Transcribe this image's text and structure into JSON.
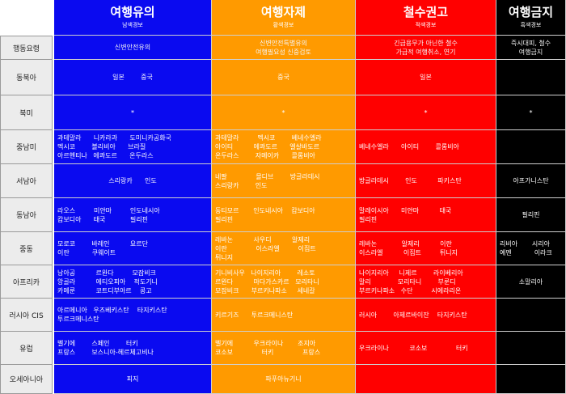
{
  "columns": [
    {
      "title": "여행유의",
      "subtitle": "남색경보",
      "color": "#0a0af0"
    },
    {
      "title": "여행자제",
      "subtitle": "황색경보",
      "color": "#ff9a00"
    },
    {
      "title": "철수권고",
      "subtitle": "적색경보",
      "color": "#ff0000"
    },
    {
      "title": "여행금지",
      "subtitle": "흑색경보",
      "color": "#000000"
    }
  ],
  "rows": [
    {
      "label": "행동요령",
      "cells": [
        [
          "신변안전유의"
        ],
        [
          "신변안전특별유의",
          "여행필요성 신중검토"
        ],
        [
          "긴급용무가 아닌한 철수",
          "가급적 여행취소, 연기"
        ],
        [
          "즉시대피, 철수",
          "여행금지"
        ]
      ]
    },
    {
      "label": "동북아",
      "cells": [
        [
          "일본        중국"
        ],
        [
          "중국"
        ],
        [
          "일본"
        ],
        [
          ""
        ]
      ]
    },
    {
      "label": "북미",
      "cells": [
        [
          "*"
        ],
        [
          "*"
        ],
        [
          "*"
        ],
        [
          "*"
        ]
      ]
    },
    {
      "label": "중남미",
      "cells": [
        [
          "과테말라      니카라과      도미니카공화국",
          "멕시코        볼리비아      브라질",
          "아르헨티나   에콰도르      온두라스"
        ],
        [
          "과테말라         멕시코        베네수엘라",
          "아이티          에콰도르      엘살바도르",
          "온두라스        자메이카      콜롬비아"
        ],
        [
          "베네수엘라      아이티        콜롬비아"
        ],
        [
          ""
        ]
      ]
    },
    {
      "label": "서남아",
      "cells": [
        [
          "스리랑카      인도"
        ],
        [
          "네팔              몰디브        방글라데시",
          "스리랑카        인도"
        ],
        [
          "방글라데시        인도          파키스탄"
        ],
        [
          "아프가니스탄"
        ]
      ]
    },
    {
      "label": "동남아",
      "cells": [
        [
          "라오스         미얀마         인도네시아",
          "캄보디아      태국            필리핀"
        ],
        [
          "동티모르       인도네시아    캄보디아",
          "필리핀"
        ],
        [
          "말레이시아      미얀마          태국",
          "필리핀"
        ],
        [
          "필리핀"
        ]
      ]
    },
    {
      "label": "중동",
      "cells": [
        [
          "모로코        바레인          요르단",
          "이란           쿠웨이트"
        ],
        [
          "레바논          사우디          알제리",
          "이란              이스라엘         이집트",
          "튀니지"
        ],
        [
          "레바논            알제리          이란",
          "이스라엘          이집트         튀니지"
        ],
        [
          "리비아       시리아",
          "예멘           이라크"
        ]
      ]
    },
    {
      "label": "아프리카",
      "cells": [
        [
          "남아공          르완다         모잠비크",
          "앙골라          에티오피아    적도기니",
          "카메룬          코트디부아르    콩고"
        ],
        [
          "기니비사우   나이지리아        레소토",
          "르완다          마다가스카르   모리타니",
          "모잠비크      부르키나파소     세네갈"
        ],
        [
          "나이지리아     니제르        라이베리아",
          "말리             모리타니        부룬디",
          "부르키나파소   수단         시에라리온"
        ],
        [
          "소말리아"
        ]
      ]
    },
    {
      "label": "러시아 CIS",
      "cells": [
        [
          "아르메니아   우즈베키스탄    타지키스탄",
          "투르크메니스탄"
        ],
        [
          "키르기즈      투르크메니스탄"
        ],
        [
          "러시아        아제르바이잔    타지키스탄"
        ],
        [
          ""
        ]
      ]
    },
    {
      "label": "유럽",
      "cells": [
        [
          "벨기에        스페인        터키",
          "프랑스        보스니아-헤르체고비나"
        ],
        [
          "벨기에          우크라이나       조지아",
          "코소보              터키              프랑스"
        ],
        [
          "우크라이나          코소보              터키"
        ],
        [
          ""
        ]
      ]
    },
    {
      "label": "오세아니아",
      "cells": [
        [
          "피지"
        ],
        [
          "파푸아뉴기니"
        ],
        [
          ""
        ],
        [
          ""
        ]
      ]
    }
  ]
}
